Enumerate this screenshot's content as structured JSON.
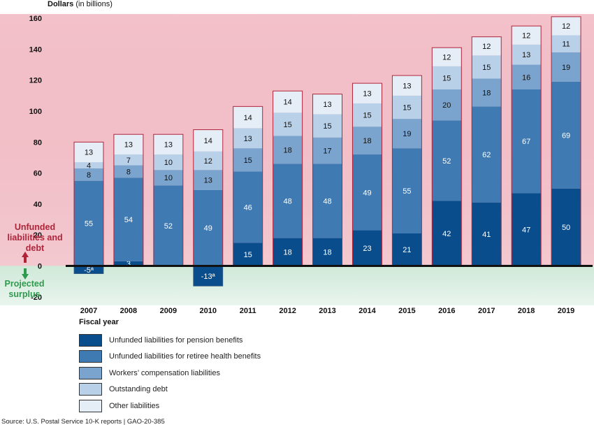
{
  "chart_data": {
    "type": "bar",
    "stacked": true,
    "ylabel_bold": "Dollars",
    "ylabel_rest": "(in billions)",
    "xlabel": "Fiscal year",
    "ylim": [
      -20,
      160
    ],
    "yticks": [
      "160",
      "140",
      "120",
      "100",
      "80",
      "60",
      "40",
      "20",
      "0",
      "-20"
    ],
    "categories": [
      "2007",
      "2008",
      "2009",
      "2010",
      "2011",
      "2012",
      "2013",
      "2014",
      "2015",
      "2016",
      "2017",
      "2018",
      "2019"
    ],
    "series": [
      {
        "name": "Unfunded liabilities for pension benefits",
        "color": "#0a4d8c",
        "values": [
          -5,
          3,
          0,
          -13,
          15,
          18,
          18,
          23,
          21,
          42,
          41,
          47,
          50
        ],
        "labels": [
          "-5ª",
          "3",
          "",
          "-13ª",
          "15",
          "18",
          "18",
          "23",
          "21",
          "42",
          "41",
          "47",
          "50"
        ]
      },
      {
        "name": "Unfunded liabilities for retiree health benefits",
        "color": "#3f7ab3",
        "values": [
          55,
          54,
          52,
          49,
          46,
          48,
          48,
          49,
          55,
          52,
          62,
          67,
          69
        ],
        "labels": [
          "55",
          "54",
          "52",
          "49",
          "46",
          "48",
          "48",
          "49",
          "55",
          "52",
          "62",
          "67",
          "69"
        ]
      },
      {
        "name": "Workers’ compensation liabilities",
        "color": "#7aa4cd",
        "values": [
          8,
          8,
          10,
          13,
          15,
          18,
          17,
          18,
          19,
          20,
          18,
          16,
          19
        ],
        "labels": [
          "8",
          "8",
          "10",
          "13",
          "15",
          "18",
          "17",
          "18",
          "19",
          "20",
          "18",
          "16",
          "19"
        ]
      },
      {
        "name": "Outstanding debt",
        "color": "#b9d1e8",
        "values": [
          4,
          7,
          10,
          12,
          13,
          15,
          15,
          15,
          15,
          15,
          15,
          13,
          11
        ],
        "labels": [
          "4",
          "7",
          "10",
          "12",
          "13",
          "15",
          "15",
          "15",
          "15",
          "15",
          "15",
          "13",
          "11"
        ]
      },
      {
        "name": "Other liabilities",
        "color": "#e5edf6",
        "values": [
          13,
          13,
          13,
          14,
          14,
          14,
          13,
          13,
          13,
          12,
          12,
          12,
          12
        ],
        "labels": [
          "13",
          "13",
          "13",
          "14",
          "14",
          "14",
          "13",
          "13",
          "13",
          "12",
          "12",
          "12",
          "12"
        ]
      }
    ],
    "side_labels": {
      "upper": "Unfunded liabilities and debt",
      "lower": "Projected surplus"
    },
    "background": {
      "upper_color": "#f3c9d0",
      "lower_color": "#cfe9d8"
    },
    "source": "Source: U.S. Postal Service 10-K reports | GAO-20-385"
  }
}
